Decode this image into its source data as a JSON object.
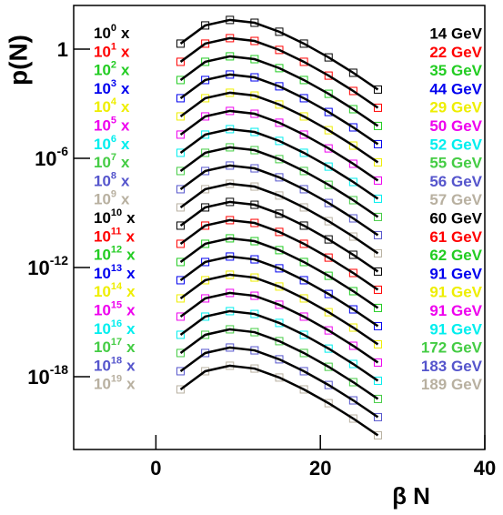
{
  "chart_data": {
    "type": "line",
    "ylabel": "p(N)",
    "xlabel": "β N",
    "log_y": true,
    "xlim": [
      -10,
      40
    ],
    "xticks": [
      0,
      20,
      40
    ],
    "ylim": [
      1e-22,
      250
    ],
    "yticks": [
      1,
      {
        "value": 1e-06,
        "label": "10",
        "exponent": "-6"
      },
      {
        "value": 1e-12,
        "label": "10",
        "exponent": "-12"
      },
      {
        "value": 1e-18,
        "label": "10",
        "exponent": "-18"
      }
    ],
    "scale_base": "10",
    "scale_suffix": "x",
    "x": [
      3,
      6,
      9,
      12,
      15,
      18,
      21,
      24,
      27
    ],
    "series": [
      {
        "name": "14 GeV",
        "scale_exponent": "0",
        "color": "#000000",
        "values": [
          2.0,
          20.0,
          40.0,
          28.0,
          9.0,
          2.0,
          0.35,
          0.05,
          0.006
        ]
      },
      {
        "name": "22 GeV",
        "scale_exponent": "1",
        "color": "#ff0000",
        "values": [
          0.2,
          2.0,
          4.0,
          2.8,
          0.9,
          0.2,
          0.035,
          0.005,
          0.0006
        ]
      },
      {
        "name": "35 GeV",
        "scale_exponent": "2",
        "color": "#22cc22",
        "values": [
          0.02,
          0.2,
          0.4,
          0.28,
          0.09,
          0.02,
          0.0035,
          0.0005,
          6e-05
        ]
      },
      {
        "name": "44 GeV",
        "scale_exponent": "3",
        "color": "#0000ee",
        "values": [
          0.002,
          0.02,
          0.04,
          0.028,
          0.009,
          0.002,
          0.00035,
          5e-05,
          6e-06
        ]
      },
      {
        "name": "29 GeV",
        "scale_exponent": "4",
        "color": "#eeee00",
        "values": [
          0.0002,
          0.002,
          0.004,
          0.0028,
          0.0009,
          0.0002,
          3.5e-05,
          5e-06,
          6e-07
        ]
      },
      {
        "name": "50 GeV",
        "scale_exponent": "5",
        "color": "#ee00ee",
        "values": [
          2e-05,
          0.0002,
          0.0004,
          0.00028,
          9e-05,
          2e-05,
          3.5e-06,
          5e-07,
          6e-08
        ]
      },
      {
        "name": "52 GeV",
        "scale_exponent": "6",
        "color": "#00eeee",
        "values": [
          2e-06,
          2e-05,
          4e-05,
          2.8e-05,
          9e-06,
          2e-06,
          3.5e-07,
          5e-08,
          6e-09
        ]
      },
      {
        "name": "55 GeV",
        "scale_exponent": "7",
        "color": "#44cc44",
        "values": [
          2e-07,
          2e-06,
          4e-06,
          2.8e-06,
          9e-07,
          2e-07,
          3.5e-08,
          5e-09,
          6e-10
        ]
      },
      {
        "name": "56 GeV",
        "scale_exponent": "8",
        "color": "#5555cc",
        "values": [
          2e-08,
          2e-07,
          4e-07,
          2.8e-07,
          9e-08,
          2e-08,
          3.5e-09,
          5e-10,
          6e-11
        ]
      },
      {
        "name": "57 GeV",
        "scale_exponent": "9",
        "color": "#b8b0a0",
        "values": [
          2e-09,
          2e-08,
          4e-08,
          2.8e-08,
          9e-09,
          2e-09,
          3.5e-10,
          5e-11,
          6e-12
        ]
      },
      {
        "name": "60 GeV",
        "scale_exponent": "10",
        "color": "#000000",
        "values": [
          2e-10,
          2e-09,
          4e-09,
          2.8e-09,
          9e-10,
          2e-10,
          3.5e-11,
          5e-12,
          6e-13
        ]
      },
      {
        "name": "61 GeV",
        "scale_exponent": "11",
        "color": "#ff0000",
        "values": [
          2e-11,
          2e-10,
          4e-10,
          2.8e-10,
          9e-11,
          2e-11,
          3.5e-12,
          5e-13,
          6e-14
        ]
      },
      {
        "name": "62 GeV",
        "scale_exponent": "12",
        "color": "#22cc22",
        "values": [
          2e-12,
          2e-11,
          4e-11,
          2.8e-11,
          9e-12,
          2e-12,
          3.5e-13,
          5e-14,
          6e-15
        ]
      },
      {
        "name": "91 GeV",
        "scale_exponent": "13",
        "color": "#0000ee",
        "values": [
          2e-13,
          2e-12,
          4e-12,
          2.8e-12,
          9e-13,
          2e-13,
          3.5e-14,
          5e-15,
          6e-16
        ]
      },
      {
        "name": "91 GeV",
        "scale_exponent": "14",
        "color": "#eeee00",
        "values": [
          2e-14,
          2e-13,
          4e-13,
          2.8e-13,
          9e-14,
          2e-14,
          3.5e-15,
          5e-16,
          6e-17
        ]
      },
      {
        "name": "91 GeV",
        "scale_exponent": "15",
        "color": "#ee00ee",
        "values": [
          2e-15,
          2e-14,
          4e-14,
          2.8e-14,
          9e-15,
          2e-15,
          3.5e-16,
          5e-17,
          6e-18
        ]
      },
      {
        "name": "91 GeV",
        "scale_exponent": "16",
        "color": "#00eeee",
        "values": [
          2e-16,
          2e-15,
          4e-15,
          2.8e-15,
          9e-16,
          2e-16,
          3.5e-17,
          5e-18,
          6e-19
        ]
      },
      {
        "name": "172 GeV",
        "scale_exponent": "17",
        "color": "#44cc44",
        "values": [
          2e-17,
          2e-16,
          4e-16,
          2.8e-16,
          9e-17,
          2e-17,
          3.5e-18,
          5e-19,
          6e-20
        ]
      },
      {
        "name": "183 GeV",
        "scale_exponent": "18",
        "color": "#5555cc",
        "values": [
          2e-18,
          2e-17,
          4e-17,
          2.8e-17,
          9e-18,
          2e-18,
          3.5e-19,
          5e-20,
          6e-21
        ]
      },
      {
        "name": "189 GeV",
        "scale_exponent": "19",
        "color": "#b8b0a0",
        "values": [
          2e-19,
          2e-18,
          4e-18,
          2.8e-18,
          9e-19,
          2e-19,
          3.5e-20,
          5e-21,
          6e-22
        ]
      }
    ]
  }
}
